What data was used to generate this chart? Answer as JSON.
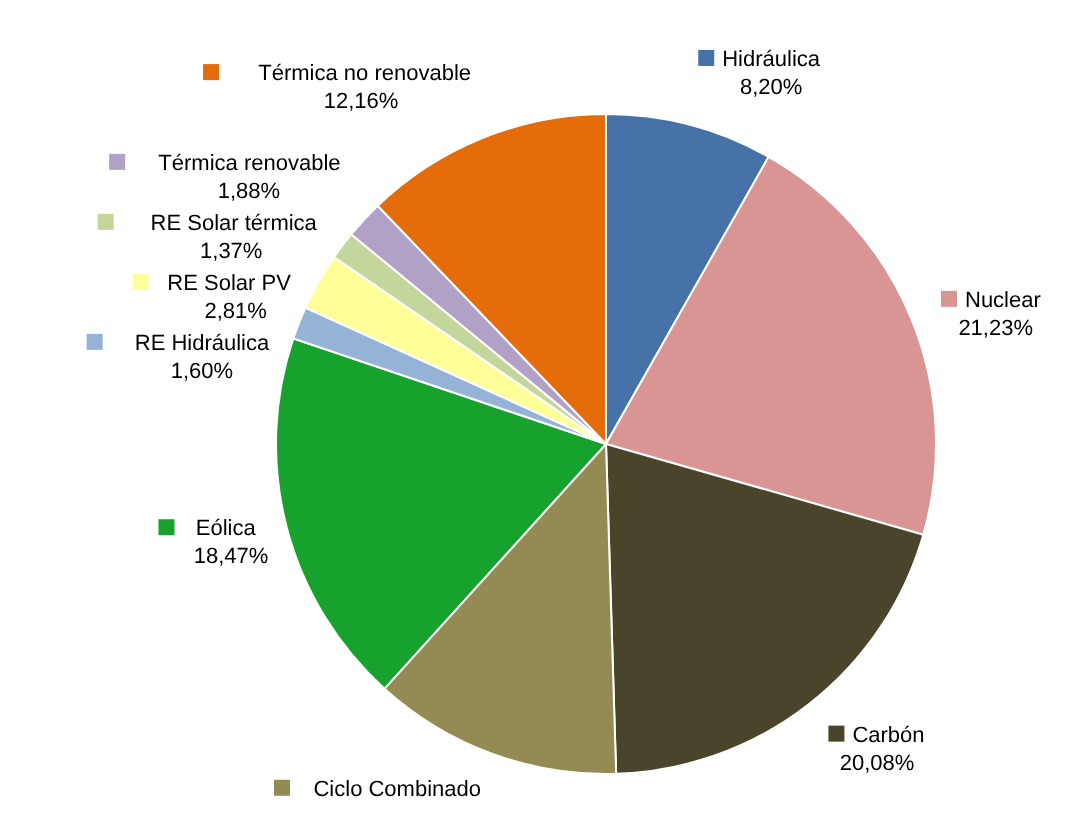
{
  "chart_data": {
    "type": "pie",
    "categories": [
      "Hidráulica",
      "Nuclear",
      "Carbón",
      "Ciclo Combinado",
      "Eólica",
      "RE Hidráulica",
      "RE Solar PV",
      "RE Solar térmica",
      "Térmica renovable",
      "Térmica no renovable"
    ],
    "values": [
      8.2,
      21.23,
      20.08,
      12.2,
      18.47,
      1.6,
      2.81,
      1.37,
      1.88,
      12.16
    ],
    "value_labels": [
      "8,20%",
      "21,23%",
      "20,08%",
      null,
      "18,47%",
      "1,60%",
      "2,81%",
      "1,37%",
      "1,88%",
      "12,16%"
    ],
    "legend": "top left",
    "colors": [
      "#4672a8",
      "#d99594",
      "#4a452a",
      "#948a54",
      "#16a22c",
      "#95b3d7",
      "#ffff99",
      "#c3d69b",
      "#b2a1c7",
      "#e46c0a"
    ]
  }
}
